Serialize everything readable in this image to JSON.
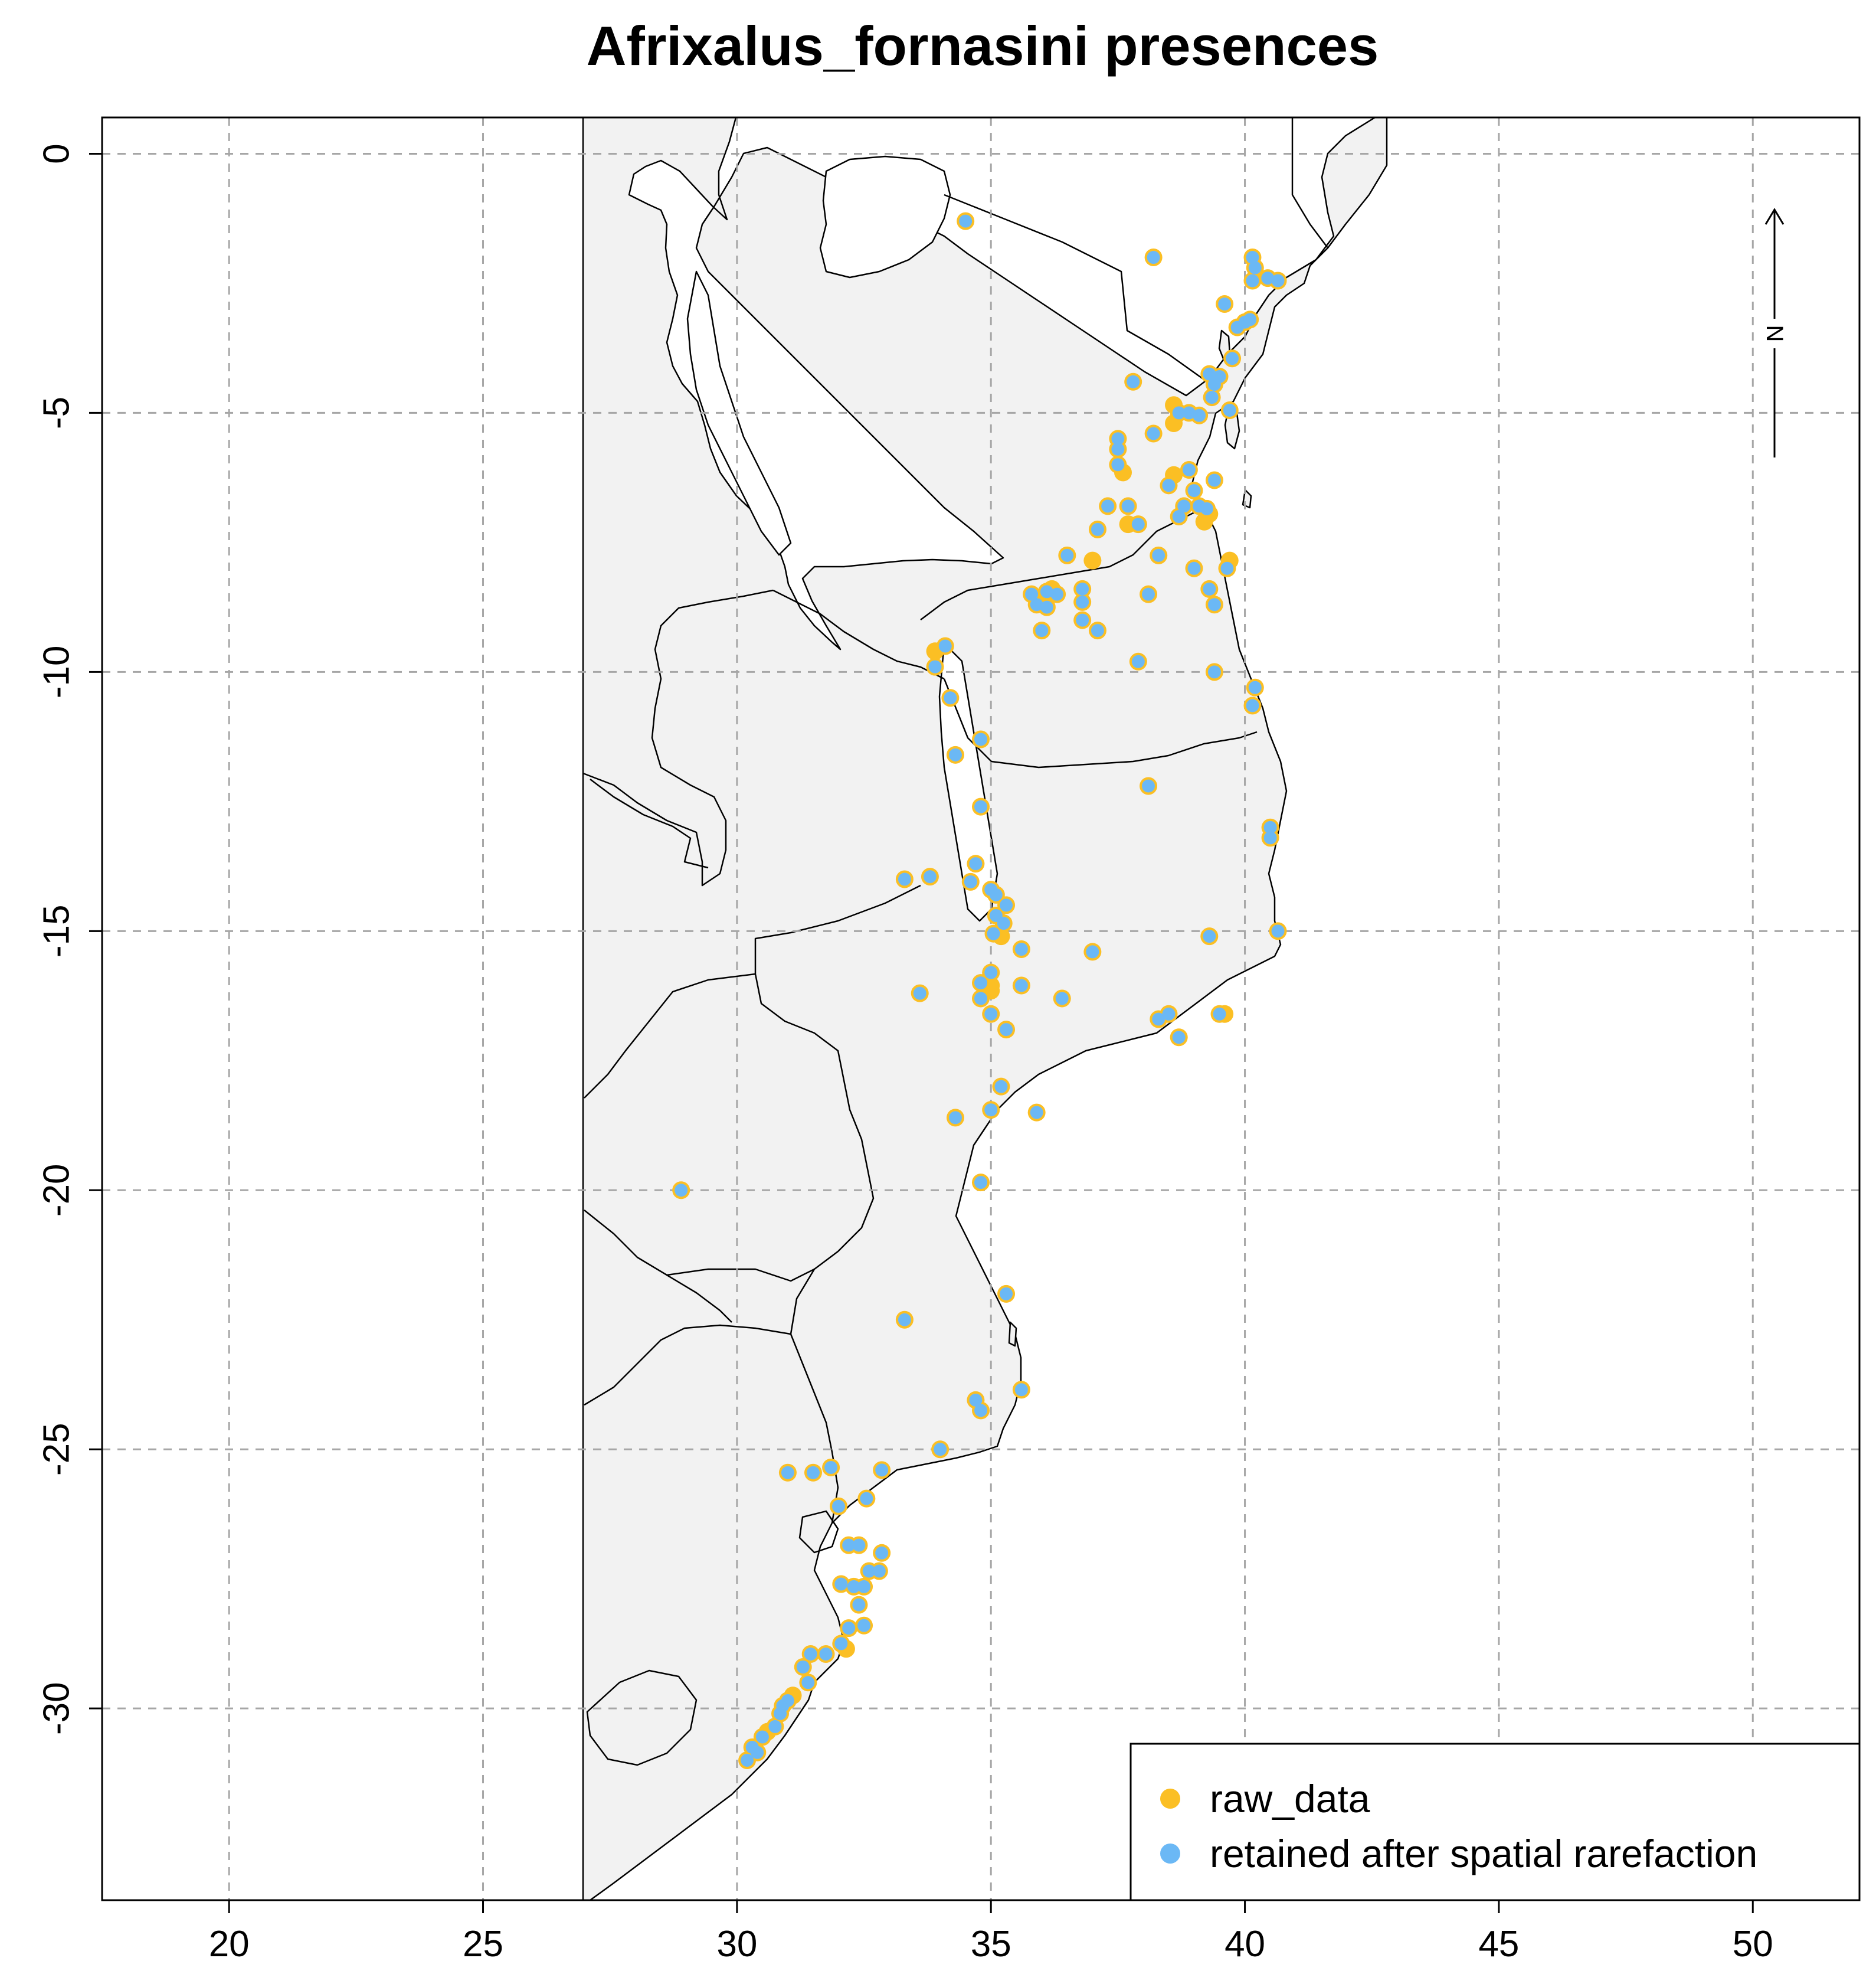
{
  "chart_data": {
    "type": "scatter",
    "title": "Afrixalus_fornasini presences",
    "xlabel": "",
    "ylabel": "",
    "xlim": [
      17.5,
      52.1
    ],
    "ylim": [
      -33.7,
      0.7
    ],
    "x_ticks": [
      20,
      25,
      30,
      35,
      40,
      45,
      50
    ],
    "y_ticks": [
      0,
      -5,
      -10,
      -15,
      -20,
      -25,
      -30
    ],
    "grid": true,
    "legend_position": "bottom-right",
    "north_arrow": {
      "label": "N",
      "lon": 50.4
    },
    "colors": {
      "raw_data": "#fbbf24",
      "retained": "#6bb8f5",
      "land": "#f2f2f2",
      "grid": "#a6a6a6"
    },
    "series": [
      {
        "name": "raw_data",
        "color": "#fbbf24",
        "points": [
          [
            34.5,
            -1.3
          ],
          [
            38.2,
            -2.0
          ],
          [
            39.6,
            -2.9
          ],
          [
            40.15,
            -2.0
          ],
          [
            40.2,
            -2.2
          ],
          [
            40.15,
            -2.45
          ],
          [
            40.45,
            -2.4
          ],
          [
            40.65,
            -2.45
          ],
          [
            39.85,
            -3.35
          ],
          [
            40.0,
            -3.25
          ],
          [
            40.1,
            -3.2
          ],
          [
            39.75,
            -3.95
          ],
          [
            39.3,
            -4.25
          ],
          [
            39.5,
            -4.3
          ],
          [
            39.4,
            -4.45
          ],
          [
            39.35,
            -4.7
          ],
          [
            37.8,
            -4.4
          ],
          [
            38.6,
            -4.85
          ],
          [
            38.7,
            -5.0
          ],
          [
            38.6,
            -5.2
          ],
          [
            38.9,
            -5.0
          ],
          [
            39.1,
            -5.05
          ],
          [
            39.7,
            -4.95
          ],
          [
            38.2,
            -5.4
          ],
          [
            37.5,
            -5.5
          ],
          [
            37.5,
            -5.7
          ],
          [
            37.5,
            -6.0
          ],
          [
            37.6,
            -6.15
          ],
          [
            38.6,
            -6.2
          ],
          [
            38.9,
            -6.1
          ],
          [
            38.5,
            -6.4
          ],
          [
            39.4,
            -6.3
          ],
          [
            39.0,
            -6.5
          ],
          [
            39.1,
            -6.8
          ],
          [
            38.8,
            -6.8
          ],
          [
            39.25,
            -6.85
          ],
          [
            39.2,
            -7.1
          ],
          [
            39.3,
            -6.95
          ],
          [
            38.7,
            -7.0
          ],
          [
            37.7,
            -6.8
          ],
          [
            37.3,
            -6.8
          ],
          [
            37.7,
            -7.15
          ],
          [
            37.9,
            -7.15
          ],
          [
            37.1,
            -7.25
          ],
          [
            36.5,
            -7.75
          ],
          [
            37.0,
            -7.85
          ],
          [
            38.3,
            -7.75
          ],
          [
            39.7,
            -7.85
          ],
          [
            39.65,
            -8.0
          ],
          [
            39.0,
            -8.0
          ],
          [
            35.8,
            -8.5
          ],
          [
            35.9,
            -8.7
          ],
          [
            36.1,
            -8.45
          ],
          [
            36.2,
            -8.4
          ],
          [
            36.3,
            -8.5
          ],
          [
            36.1,
            -8.75
          ],
          [
            36.8,
            -8.4
          ],
          [
            36.8,
            -8.65
          ],
          [
            36.8,
            -9.0
          ],
          [
            36.0,
            -9.2
          ],
          [
            37.1,
            -9.2
          ],
          [
            38.1,
            -8.5
          ],
          [
            39.3,
            -8.4
          ],
          [
            39.4,
            -8.7
          ],
          [
            37.9,
            -9.8
          ],
          [
            39.4,
            -10.0
          ],
          [
            40.2,
            -10.3
          ],
          [
            40.15,
            -10.65
          ],
          [
            33.9,
            -9.6
          ],
          [
            34.1,
            -9.5
          ],
          [
            33.9,
            -9.9
          ],
          [
            34.2,
            -10.5
          ],
          [
            34.3,
            -11.6
          ],
          [
            34.8,
            -11.3
          ],
          [
            38.1,
            -12.2
          ],
          [
            34.8,
            -12.6
          ],
          [
            40.5,
            -13.0
          ],
          [
            40.5,
            -13.2
          ],
          [
            33.3,
            -14.0
          ],
          [
            33.8,
            -13.95
          ],
          [
            34.7,
            -13.7
          ],
          [
            34.6,
            -14.05
          ],
          [
            35.0,
            -14.2
          ],
          [
            35.1,
            -14.3
          ],
          [
            35.3,
            -14.5
          ],
          [
            35.1,
            -14.7
          ],
          [
            35.25,
            -14.85
          ],
          [
            35.05,
            -15.05
          ],
          [
            35.2,
            -15.1
          ],
          [
            40.65,
            -15.0
          ],
          [
            39.3,
            -15.1
          ],
          [
            35.6,
            -15.35
          ],
          [
            37.0,
            -15.4
          ],
          [
            35.0,
            -15.8
          ],
          [
            34.8,
            -16.0
          ],
          [
            35.0,
            -16.05
          ],
          [
            35.0,
            -16.15
          ],
          [
            34.8,
            -16.3
          ],
          [
            35.6,
            -16.05
          ],
          [
            33.6,
            -16.2
          ],
          [
            36.4,
            -16.3
          ],
          [
            35.0,
            -16.6
          ],
          [
            38.3,
            -16.7
          ],
          [
            38.5,
            -16.6
          ],
          [
            39.5,
            -16.6
          ],
          [
            39.6,
            -16.6
          ],
          [
            35.3,
            -16.9
          ],
          [
            38.7,
            -17.05
          ],
          [
            35.2,
            -18.0
          ],
          [
            35.0,
            -18.45
          ],
          [
            34.3,
            -18.6
          ],
          [
            35.9,
            -18.5
          ],
          [
            34.8,
            -19.85
          ],
          [
            28.9,
            -20.0
          ],
          [
            35.3,
            -22.0
          ],
          [
            33.3,
            -22.5
          ],
          [
            35.6,
            -23.85
          ],
          [
            34.7,
            -24.05
          ],
          [
            34.8,
            -24.25
          ],
          [
            34.0,
            -25.0
          ],
          [
            31.0,
            -25.45
          ],
          [
            31.5,
            -25.45
          ],
          [
            31.85,
            -25.35
          ],
          [
            32.85,
            -25.4
          ],
          [
            32.55,
            -25.95
          ],
          [
            32.0,
            -26.1
          ],
          [
            32.2,
            -26.85
          ],
          [
            32.4,
            -26.85
          ],
          [
            32.85,
            -27.0
          ],
          [
            32.6,
            -27.35
          ],
          [
            32.8,
            -27.35
          ],
          [
            32.05,
            -27.6
          ],
          [
            32.3,
            -27.65
          ],
          [
            32.5,
            -27.65
          ],
          [
            32.4,
            -28.0
          ],
          [
            32.5,
            -28.4
          ],
          [
            32.2,
            -28.45
          ],
          [
            32.05,
            -28.75
          ],
          [
            32.15,
            -28.85
          ],
          [
            31.75,
            -28.95
          ],
          [
            31.45,
            -28.95
          ],
          [
            31.3,
            -29.2
          ],
          [
            31.4,
            -29.5
          ],
          [
            31.0,
            -29.85
          ],
          [
            31.1,
            -29.75
          ],
          [
            30.9,
            -29.95
          ],
          [
            30.85,
            -30.1
          ],
          [
            30.75,
            -30.35
          ],
          [
            30.6,
            -30.45
          ],
          [
            30.5,
            -30.55
          ],
          [
            30.3,
            -30.75
          ],
          [
            30.4,
            -30.85
          ],
          [
            30.2,
            -31.0
          ]
        ]
      },
      {
        "name": "retained after spatial rarefaction",
        "color": "#6bb8f5",
        "points": [
          [
            34.5,
            -1.3
          ],
          [
            38.2,
            -2.0
          ],
          [
            39.6,
            -2.9
          ],
          [
            40.15,
            -2.0
          ],
          [
            40.2,
            -2.2
          ],
          [
            40.15,
            -2.45
          ],
          [
            40.45,
            -2.4
          ],
          [
            40.65,
            -2.45
          ],
          [
            39.85,
            -3.35
          ],
          [
            40.0,
            -3.25
          ],
          [
            40.1,
            -3.2
          ],
          [
            39.75,
            -3.95
          ],
          [
            39.3,
            -4.25
          ],
          [
            39.5,
            -4.3
          ],
          [
            39.4,
            -4.45
          ],
          [
            39.35,
            -4.7
          ],
          [
            37.8,
            -4.4
          ],
          [
            38.7,
            -5.0
          ],
          [
            38.9,
            -5.0
          ],
          [
            39.1,
            -5.05
          ],
          [
            39.7,
            -4.95
          ],
          [
            38.2,
            -5.4
          ],
          [
            37.5,
            -5.5
          ],
          [
            37.5,
            -5.7
          ],
          [
            37.5,
            -6.0
          ],
          [
            38.9,
            -6.1
          ],
          [
            38.5,
            -6.4
          ],
          [
            39.4,
            -6.3
          ],
          [
            39.0,
            -6.5
          ],
          [
            39.1,
            -6.8
          ],
          [
            38.8,
            -6.8
          ],
          [
            39.25,
            -6.85
          ],
          [
            38.7,
            -7.0
          ],
          [
            37.7,
            -6.8
          ],
          [
            37.3,
            -6.8
          ],
          [
            37.9,
            -7.15
          ],
          [
            37.1,
            -7.25
          ],
          [
            36.5,
            -7.75
          ],
          [
            38.3,
            -7.75
          ],
          [
            39.65,
            -8.0
          ],
          [
            39.0,
            -8.0
          ],
          [
            35.8,
            -8.5
          ],
          [
            35.9,
            -8.7
          ],
          [
            36.1,
            -8.45
          ],
          [
            36.3,
            -8.5
          ],
          [
            36.1,
            -8.75
          ],
          [
            36.8,
            -8.4
          ],
          [
            36.8,
            -8.65
          ],
          [
            36.8,
            -9.0
          ],
          [
            36.0,
            -9.2
          ],
          [
            37.1,
            -9.2
          ],
          [
            38.1,
            -8.5
          ],
          [
            39.3,
            -8.4
          ],
          [
            39.4,
            -8.7
          ],
          [
            37.9,
            -9.8
          ],
          [
            39.4,
            -10.0
          ],
          [
            40.2,
            -10.3
          ],
          [
            40.15,
            -10.65
          ],
          [
            34.1,
            -9.5
          ],
          [
            33.9,
            -9.9
          ],
          [
            34.2,
            -10.5
          ],
          [
            34.3,
            -11.6
          ],
          [
            34.8,
            -11.3
          ],
          [
            38.1,
            -12.2
          ],
          [
            34.8,
            -12.6
          ],
          [
            40.5,
            -13.0
          ],
          [
            40.5,
            -13.2
          ],
          [
            33.3,
            -14.0
          ],
          [
            33.8,
            -13.95
          ],
          [
            34.7,
            -13.7
          ],
          [
            34.6,
            -14.05
          ],
          [
            35.0,
            -14.2
          ],
          [
            35.1,
            -14.3
          ],
          [
            35.3,
            -14.5
          ],
          [
            35.1,
            -14.7
          ],
          [
            35.25,
            -14.85
          ],
          [
            35.05,
            -15.05
          ],
          [
            40.65,
            -15.0
          ],
          [
            39.3,
            -15.1
          ],
          [
            35.6,
            -15.35
          ],
          [
            37.0,
            -15.4
          ],
          [
            35.0,
            -15.8
          ],
          [
            34.8,
            -16.0
          ],
          [
            34.8,
            -16.3
          ],
          [
            35.6,
            -16.05
          ],
          [
            33.6,
            -16.2
          ],
          [
            36.4,
            -16.3
          ],
          [
            35.0,
            -16.6
          ],
          [
            38.3,
            -16.7
          ],
          [
            38.5,
            -16.6
          ],
          [
            39.5,
            -16.6
          ],
          [
            35.3,
            -16.9
          ],
          [
            38.7,
            -17.05
          ],
          [
            35.2,
            -18.0
          ],
          [
            35.0,
            -18.45
          ],
          [
            34.3,
            -18.6
          ],
          [
            35.9,
            -18.5
          ],
          [
            34.8,
            -19.85
          ],
          [
            28.9,
            -20.0
          ],
          [
            35.3,
            -22.0
          ],
          [
            33.3,
            -22.5
          ],
          [
            35.6,
            -23.85
          ],
          [
            34.7,
            -24.05
          ],
          [
            34.8,
            -24.25
          ],
          [
            34.0,
            -25.0
          ],
          [
            31.0,
            -25.45
          ],
          [
            31.5,
            -25.45
          ],
          [
            31.85,
            -25.35
          ],
          [
            32.85,
            -25.4
          ],
          [
            32.55,
            -25.95
          ],
          [
            32.0,
            -26.1
          ],
          [
            32.2,
            -26.85
          ],
          [
            32.4,
            -26.85
          ],
          [
            32.85,
            -27.0
          ],
          [
            32.6,
            -27.35
          ],
          [
            32.8,
            -27.35
          ],
          [
            32.05,
            -27.6
          ],
          [
            32.3,
            -27.65
          ],
          [
            32.5,
            -27.65
          ],
          [
            32.4,
            -28.0
          ],
          [
            32.5,
            -28.4
          ],
          [
            32.2,
            -28.45
          ],
          [
            32.05,
            -28.75
          ],
          [
            31.75,
            -28.95
          ],
          [
            31.45,
            -28.95
          ],
          [
            31.3,
            -29.2
          ],
          [
            31.4,
            -29.5
          ],
          [
            31.0,
            -29.85
          ],
          [
            30.9,
            -29.95
          ],
          [
            30.85,
            -30.1
          ],
          [
            30.75,
            -30.35
          ],
          [
            30.5,
            -30.55
          ],
          [
            30.3,
            -30.75
          ],
          [
            30.4,
            -30.85
          ],
          [
            30.2,
            -31.0
          ]
        ]
      }
    ]
  }
}
